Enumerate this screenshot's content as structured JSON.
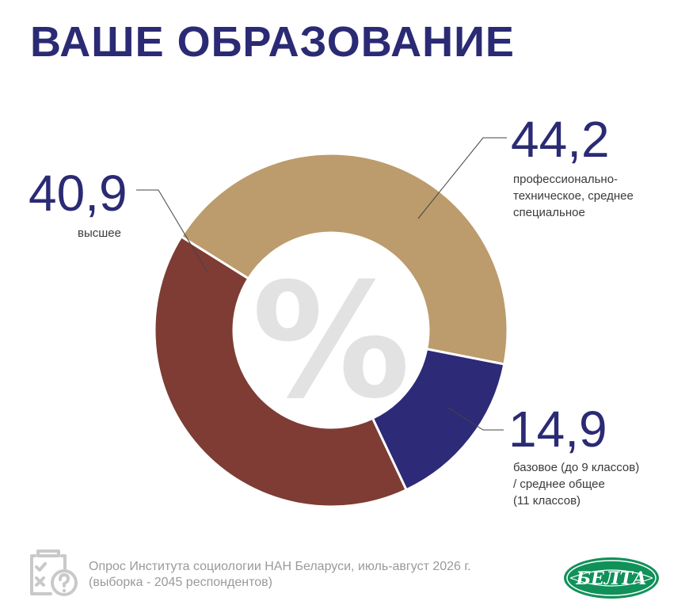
{
  "title": "ВАШЕ ОБРАЗОВАНИЕ",
  "center_glyph": "%",
  "chart_data": {
    "type": "pie",
    "donut": true,
    "unit": "%",
    "categories": [
      "профессионально-техническое, среднее специальное",
      "базовое (до 9 классов) / среднее общее (11 классов)",
      "высшее"
    ],
    "values": [
      44.2,
      14.9,
      40.9
    ],
    "value_labels": [
      "44,2",
      "14,9",
      "40,9"
    ],
    "colors": [
      "#bc9b6c",
      "#2d2a78",
      "#7e3c34"
    ]
  },
  "labels": {
    "prof": {
      "value": "44,2",
      "lines": [
        "профессионально-",
        "техническое, среднее",
        "специальное"
      ]
    },
    "base": {
      "value": "14,9",
      "lines": [
        "базовое (до 9 классов)",
        "/ среднее общее",
        "(11 классов)"
      ]
    },
    "higher": {
      "value": "40,9",
      "lines": [
        "высшее"
      ]
    }
  },
  "footer": {
    "line1": "Опрос Института социологии НАН Беларуси, июль-август 2026 г.",
    "line2": "(выборка - 2045 респондентов)",
    "icon": "survey-clipboard-icon"
  },
  "logo": {
    "text": "БЕЛТА",
    "color": "#11915a"
  }
}
